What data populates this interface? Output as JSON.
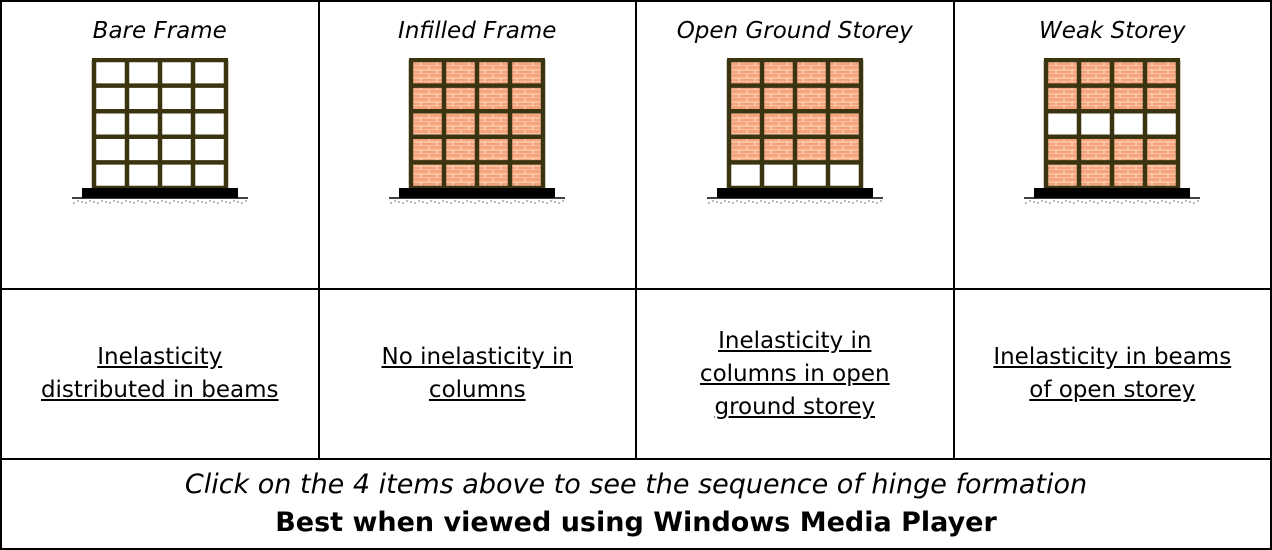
{
  "table": {
    "headers": [
      "Bare Frame",
      "Infilled Frame",
      "Open Ground Storey",
      "Weak Storey"
    ],
    "descriptions": [
      "Inelasticity distributed in beams",
      "No inelasticity in columns",
      "Inelasticity in columns in open ground storey",
      "Inelasticity in beams of open storey"
    ],
    "footer": {
      "instruction": "Click on the 4 items above to see the sequence of hinge formation",
      "note": "Best when viewed using Windows Media Player"
    }
  }
}
